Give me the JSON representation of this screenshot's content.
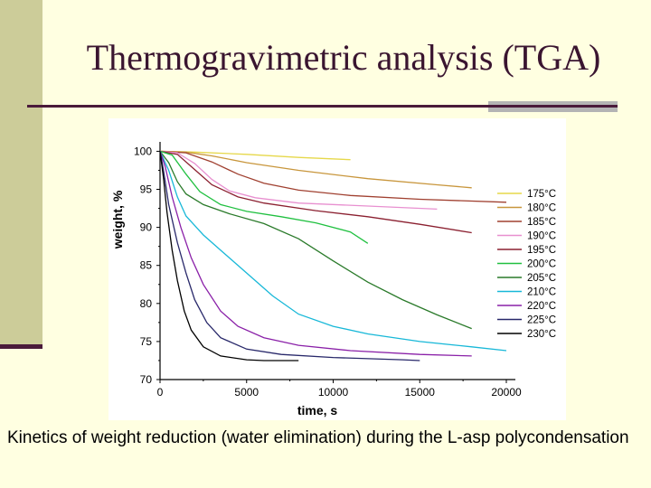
{
  "slide": {
    "title": "Thermogravimetric analysis (TGA)",
    "caption": "Kinetics of weight reduction (water elimination) during the L-asp polycondensation"
  },
  "colors": {
    "background": "#ffffe1",
    "title": "#3a1530",
    "accent_bar": "#cccc99",
    "rule": "#4a1a3a"
  },
  "chart_data": {
    "type": "line",
    "title": "",
    "xlabel": "time, s",
    "ylabel": "weight, %",
    "xlim": [
      0,
      20000
    ],
    "ylim": [
      70,
      101
    ],
    "xticks": [
      0,
      5000,
      10000,
      15000,
      20000
    ],
    "yticks": [
      70,
      75,
      80,
      85,
      90,
      95,
      100
    ],
    "grid": false,
    "legend_position": "right",
    "series": [
      {
        "name": "175°C",
        "color": "#e6d84a",
        "points": [
          [
            0,
            100
          ],
          [
            2000,
            99.9
          ],
          [
            5000,
            99.6
          ],
          [
            8000,
            99.2
          ],
          [
            11000,
            98.9
          ]
        ]
      },
      {
        "name": "180°C",
        "color": "#c8963c",
        "points": [
          [
            0,
            100
          ],
          [
            1500,
            99.9
          ],
          [
            3000,
            99.4
          ],
          [
            5000,
            98.5
          ],
          [
            8000,
            97.5
          ],
          [
            12000,
            96.4
          ],
          [
            16000,
            95.6
          ],
          [
            18000,
            95.2
          ]
        ]
      },
      {
        "name": "185°C",
        "color": "#a04030",
        "points": [
          [
            0,
            100
          ],
          [
            1500,
            99.8
          ],
          [
            3000,
            98.6
          ],
          [
            4500,
            97
          ],
          [
            6000,
            95.8
          ],
          [
            8000,
            94.9
          ],
          [
            11000,
            94.2
          ],
          [
            15000,
            93.7
          ],
          [
            20000,
            93.3
          ]
        ]
      },
      {
        "name": "190°C",
        "color": "#e890d0",
        "points": [
          [
            0,
            100
          ],
          [
            1000,
            99.8
          ],
          [
            2000,
            98.4
          ],
          [
            3000,
            96.3
          ],
          [
            4000,
            94.8
          ],
          [
            5500,
            93.9
          ],
          [
            8000,
            93.2
          ],
          [
            12000,
            92.8
          ],
          [
            16000,
            92.4
          ]
        ]
      },
      {
        "name": "195°C",
        "color": "#8b2030",
        "points": [
          [
            0,
            100
          ],
          [
            1000,
            99.6
          ],
          [
            2000,
            97.6
          ],
          [
            3000,
            95.6
          ],
          [
            4500,
            94
          ],
          [
            6000,
            93.2
          ],
          [
            9000,
            92.2
          ],
          [
            12000,
            91.4
          ],
          [
            15000,
            90.4
          ],
          [
            18000,
            89.3
          ]
        ]
      },
      {
        "name": "200°C",
        "color": "#20c040",
        "points": [
          [
            0,
            100
          ],
          [
            700,
            99.5
          ],
          [
            1500,
            97
          ],
          [
            2300,
            94.7
          ],
          [
            3500,
            93
          ],
          [
            5000,
            92.1
          ],
          [
            7000,
            91.4
          ],
          [
            9000,
            90.6
          ],
          [
            11000,
            89.4
          ],
          [
            12000,
            87.9
          ]
        ]
      },
      {
        "name": "205°C",
        "color": "#2a7a2a",
        "points": [
          [
            0,
            100
          ],
          [
            500,
            98.5
          ],
          [
            1000,
            96
          ],
          [
            1500,
            94.4
          ],
          [
            2500,
            93
          ],
          [
            4000,
            91.8
          ],
          [
            6000,
            90.5
          ],
          [
            8000,
            88.5
          ],
          [
            10000,
            85.6
          ],
          [
            12000,
            82.8
          ],
          [
            14000,
            80.5
          ],
          [
            16000,
            78.5
          ],
          [
            18000,
            76.7
          ]
        ]
      },
      {
        "name": "210°C",
        "color": "#18b8d8",
        "points": [
          [
            0,
            100
          ],
          [
            500,
            97.5
          ],
          [
            1000,
            94
          ],
          [
            1500,
            91.5
          ],
          [
            2500,
            89
          ],
          [
            3500,
            87
          ],
          [
            5000,
            84
          ],
          [
            6500,
            81
          ],
          [
            8000,
            78.6
          ],
          [
            10000,
            77
          ],
          [
            12000,
            76
          ],
          [
            15000,
            75
          ],
          [
            18000,
            74.3
          ],
          [
            20000,
            73.8
          ]
        ]
      },
      {
        "name": "220°C",
        "color": "#8a20a8",
        "points": [
          [
            0,
            100
          ],
          [
            300,
            98
          ],
          [
            700,
            94
          ],
          [
            1200,
            90
          ],
          [
            1800,
            86
          ],
          [
            2500,
            82.5
          ],
          [
            3500,
            79
          ],
          [
            4500,
            77
          ],
          [
            6000,
            75.5
          ],
          [
            8000,
            74.5
          ],
          [
            11000,
            73.8
          ],
          [
            15000,
            73.3
          ],
          [
            18000,
            73.1
          ]
        ]
      },
      {
        "name": "225°C",
        "color": "#28286a",
        "points": [
          [
            0,
            100
          ],
          [
            200,
            97.5
          ],
          [
            500,
            93
          ],
          [
            1000,
            88
          ],
          [
            1500,
            84
          ],
          [
            2000,
            80.5
          ],
          [
            2700,
            77.5
          ],
          [
            3500,
            75.5
          ],
          [
            5000,
            74
          ],
          [
            7000,
            73.3
          ],
          [
            10000,
            72.9
          ],
          [
            14000,
            72.6
          ],
          [
            15000,
            72.5
          ]
        ]
      },
      {
        "name": "230°C",
        "color": "#000000",
        "points": [
          [
            0,
            100
          ],
          [
            200,
            96.5
          ],
          [
            400,
            92
          ],
          [
            700,
            87
          ],
          [
            1000,
            83
          ],
          [
            1400,
            79
          ],
          [
            1800,
            76.5
          ],
          [
            2500,
            74.3
          ],
          [
            3500,
            73.1
          ],
          [
            5000,
            72.6
          ],
          [
            6000,
            72.5
          ],
          [
            8000,
            72.5
          ]
        ]
      }
    ]
  }
}
